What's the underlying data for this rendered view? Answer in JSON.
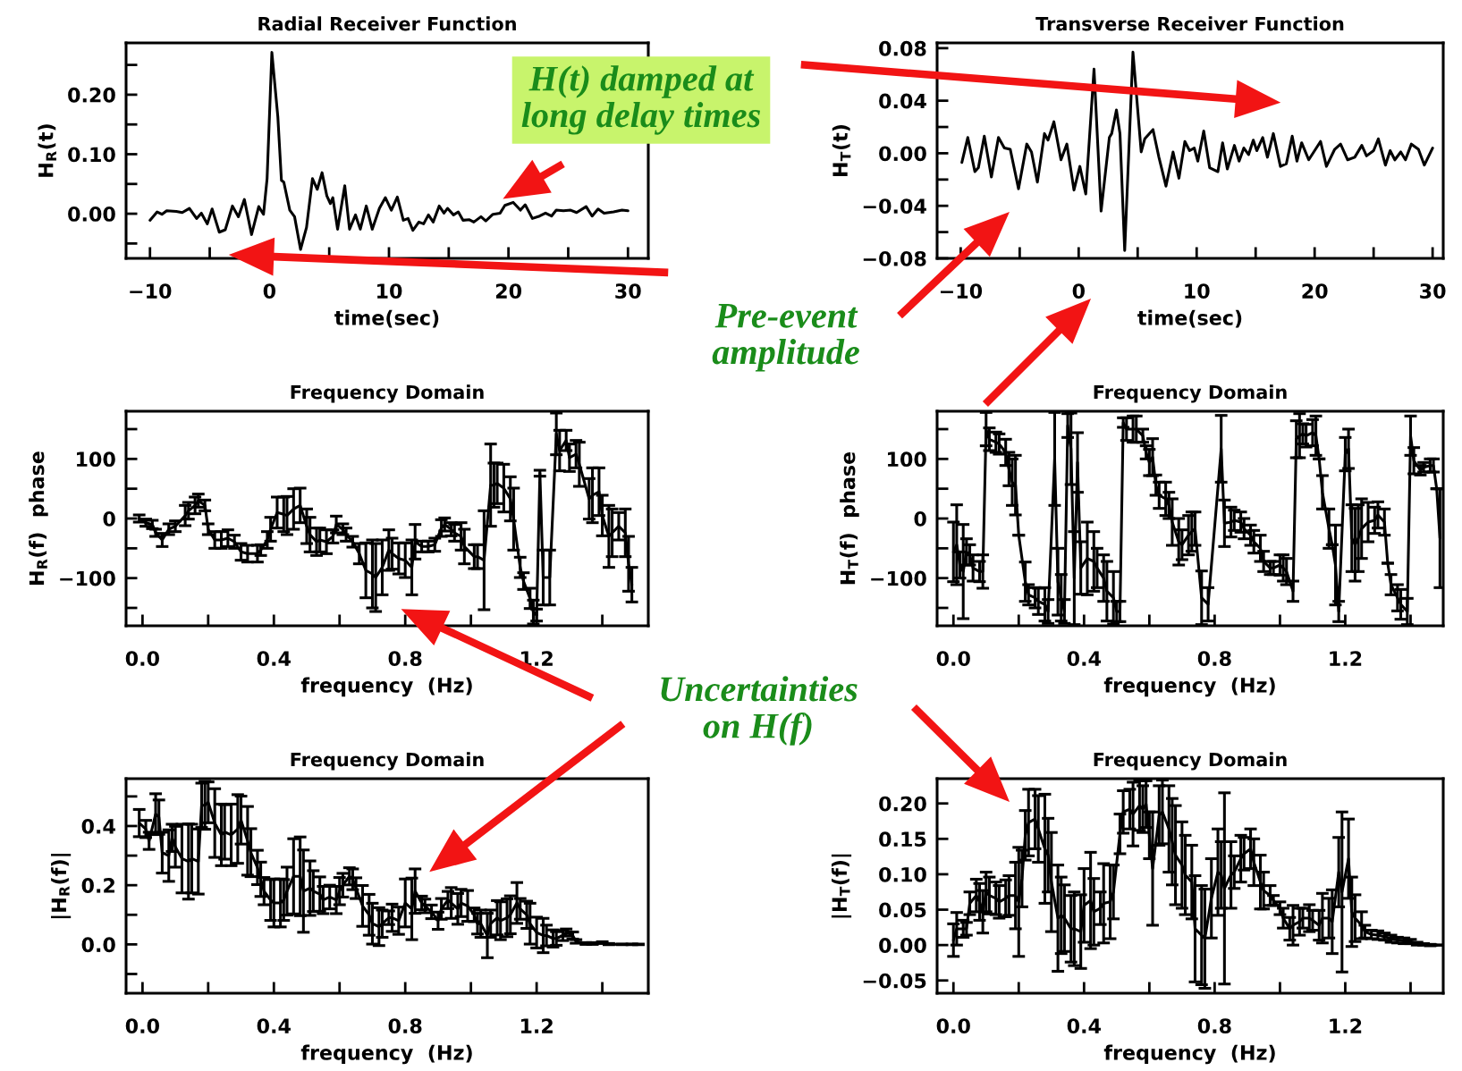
{
  "chart_data": [
    {
      "type": "line",
      "title": "Radial Receiver Function",
      "xlabel": "time(sec)",
      "ylabel": "H$_{R}$(t)",
      "xlim": [
        -12,
        31.7
      ],
      "ylim": [
        -0.075,
        0.287
      ],
      "xticks": [
        {
          "value": -10,
          "label": "−10"
        },
        {
          "value": -5,
          "label": null
        },
        0,
        {
          "value": 5,
          "label": null
        },
        10,
        {
          "value": 15,
          "label": null
        },
        20,
        {
          "value": 25,
          "label": null
        },
        30
      ],
      "yticks": [
        {
          "value": -0.05,
          "label": null
        },
        {
          "value": 0,
          "label": "0.00"
        },
        {
          "value": 0.05,
          "label": null
        },
        {
          "value": 0.1,
          "label": "0.10"
        },
        {
          "value": 0.15,
          "label": null
        },
        {
          "value": 0.2,
          "label": "0.20"
        },
        {
          "value": 0.25,
          "label": null
        }
      ],
      "annotations": [
        "H(t) damped at\nlong delay times",
        "Pre-event\namplitude",
        "Uncertainties\non H(f)"
      ],
      "series": [
        {
          "color": "#000000",
          "x": [
            -10.0,
            -9.4,
            -9.0,
            -8.6,
            -7.8,
            -7.3,
            -6.7,
            -6.1,
            -5.7,
            -5.2,
            -4.8,
            -4.2,
            -3.7,
            -3.1,
            -2.6,
            -2.1,
            -1.5,
            -0.9,
            -0.5,
            -0.2,
            0.2,
            0.7,
            1.0,
            1.2,
            1.7,
            2.1,
            2.6,
            3.1,
            3.6,
            4.0,
            4.4,
            4.8,
            5.1,
            5.3,
            5.7,
            6.3,
            6.7,
            7.2,
            7.6,
            8.1,
            8.6,
            9.2,
            9.7,
            10.2,
            10.7,
            11.2,
            11.6,
            12.0,
            12.5,
            12.9,
            13.3,
            13.7,
            14.2,
            14.6,
            14.9,
            15.4,
            15.8,
            16.2,
            16.7,
            17.1,
            17.7,
            18.1,
            18.7,
            19.3,
            19.7,
            20.4,
            21.0,
            21.4,
            22.0,
            22.6,
            23.1,
            23.6,
            24.0,
            24.6,
            25.2,
            25.7,
            26.5,
            27.0,
            27.5,
            28.0,
            28.8,
            29.5,
            30.0
          ],
          "values": [
            -0.011,
            0.003,
            -0.001,
            0.005,
            0.004,
            0.002,
            0.009,
            -0.008,
            0.001,
            -0.017,
            0.008,
            -0.031,
            -0.027,
            0.013,
            -0.005,
            0.024,
            -0.035,
            0.012,
            -0.001,
            0.059,
            0.271,
            0.163,
            0.056,
            0.053,
            0.006,
            -0.005,
            -0.06,
            -0.023,
            0.059,
            0.041,
            0.069,
            0.03,
            0.017,
            0.027,
            -0.026,
            0.047,
            -0.026,
            -0.002,
            -0.026,
            0.013,
            -0.026,
            0.009,
            0.027,
            0.006,
            0.028,
            -0.011,
            -0.008,
            -0.028,
            -0.014,
            -0.017,
            -0.002,
            -0.014,
            0.013,
            0.001,
            0.009,
            -0.002,
            0.003,
            -0.011,
            -0.01,
            -0.014,
            -0.005,
            -0.012,
            -0.001,
            0.001,
            0.014,
            0.019,
            0.006,
            0.015,
            -0.008,
            -0.004,
            0.001,
            -0.004,
            0.006,
            0.005,
            0.006,
            0.002,
            0.012,
            -0.004,
            0.008,
            0.001,
            0.003,
            0.006,
            0.005
          ]
        }
      ]
    },
    {
      "type": "line",
      "title": "Transverse Receiver Function",
      "xlabel": "time(sec)",
      "ylabel": "H$_{T}$(t)",
      "xlim": [
        -12,
        30.9
      ],
      "ylim": [
        -0.08,
        0.084
      ],
      "xticks": [
        {
          "value": -10,
          "label": "−10"
        },
        {
          "value": -5,
          "label": null
        },
        0,
        {
          "value": 5,
          "label": null
        },
        10,
        {
          "value": 15,
          "label": null
        },
        20,
        {
          "value": 25,
          "label": null
        },
        30
      ],
      "yticks": [
        {
          "value": -0.08,
          "label": "−0.08"
        },
        {
          "value": -0.06,
          "label": null
        },
        {
          "value": -0.04,
          "label": "−0.04"
        },
        {
          "value": -0.02,
          "label": null
        },
        {
          "value": 0,
          "label": "0.00"
        },
        {
          "value": 0.02,
          "label": null
        },
        {
          "value": 0.04,
          "label": "0.04"
        },
        {
          "value": 0.06,
          "label": null
        },
        {
          "value": 0.08,
          "label": "0.08"
        }
      ],
      "series": [
        {
          "color": "#000000",
          "x": [
            -9.9,
            -9.4,
            -8.8,
            -8.5,
            -8.0,
            -7.4,
            -6.8,
            -6.3,
            -5.8,
            -5.1,
            -4.4,
            -4.0,
            -3.5,
            -2.9,
            -2.6,
            -2.1,
            -1.5,
            -1.0,
            -0.4,
            0.1,
            0.6,
            1.3,
            1.9,
            2.6,
            2.8,
            3.2,
            3.5,
            3.9,
            4.6,
            5.3,
            5.6,
            6.3,
            6.8,
            7.4,
            8.0,
            8.5,
            9.0,
            9.4,
            9.8,
            10.1,
            10.6,
            11.1,
            11.8,
            12.2,
            12.6,
            13.2,
            13.6,
            14.0,
            14.4,
            14.8,
            15.1,
            15.6,
            16.0,
            16.5,
            17.1,
            17.6,
            18.1,
            18.5,
            18.9,
            19.5,
            20.5,
            21.0,
            21.7,
            22.2,
            22.8,
            23.4,
            24.0,
            24.4,
            25.0,
            25.4,
            26.0,
            26.4,
            26.8,
            27.3,
            27.7,
            28.2,
            28.8,
            29.3,
            30.0
          ],
          "values": [
            -0.007,
            0.012,
            -0.014,
            -0.011,
            0.013,
            -0.018,
            0.012,
            0.004,
            0.003,
            -0.027,
            0.007,
            0.001,
            -0.022,
            0.015,
            0.01,
            0.024,
            -0.005,
            0.007,
            -0.028,
            -0.01,
            -0.031,
            0.064,
            -0.044,
            0.012,
            0.015,
            0.033,
            0.015,
            -0.074,
            0.077,
            0.001,
            0.011,
            0.018,
            -0.003,
            -0.025,
            0.001,
            -0.019,
            0.009,
            0.002,
            0.004,
            -0.006,
            0.017,
            -0.011,
            -0.014,
            0.008,
            -0.012,
            0.006,
            -0.006,
            0.004,
            -0.001,
            0.01,
            0.002,
            0.012,
            -0.003,
            0.015,
            -0.01,
            -0.008,
            0.013,
            -0.006,
            0.008,
            -0.005,
            0.009,
            -0.01,
            0.003,
            0.007,
            -0.005,
            -0.003,
            0.006,
            -0.002,
            0.002,
            0.011,
            -0.009,
            0.002,
            -0.005,
            0.001,
            -0.005,
            0.007,
            0.003,
            -0.009,
            0.004
          ]
        }
      ]
    },
    {
      "type": "line",
      "title": "Frequency Domain",
      "xlabel": "frequency  (Hz)",
      "ylabel": "H$_{R}$(f)  phase",
      "xlim": [
        -0.05,
        1.54
      ],
      "ylim": [
        -180,
        180
      ],
      "xticks": [
        {
          "value": 0,
          "label": "0.0"
        },
        {
          "value": 0.2,
          "label": null
        },
        0.4,
        {
          "value": 0.6,
          "label": null
        },
        0.8,
        {
          "value": 1.0,
          "label": null
        },
        1.2,
        {
          "value": 1.4,
          "label": null
        }
      ],
      "yticks": [
        {
          "value": -150,
          "label": null
        },
        {
          "value": -100,
          "label": "−100"
        },
        {
          "value": -50,
          "label": null
        },
        0,
        {
          "value": 50,
          "label": null
        },
        100,
        {
          "value": 150,
          "label": null
        }
      ],
      "series": [
        {
          "color": "#000000",
          "x": [
            -0.01,
            0.01,
            0.03,
            0.04,
            0.06,
            0.08,
            0.1,
            0.13,
            0.14,
            0.16,
            0.17,
            0.19,
            0.2,
            0.22,
            0.24,
            0.26,
            0.28,
            0.3,
            0.32,
            0.35,
            0.36,
            0.38,
            0.39,
            0.41,
            0.43,
            0.44,
            0.46,
            0.48,
            0.5,
            0.51,
            0.53,
            0.54,
            0.56,
            0.58,
            0.59,
            0.61,
            0.62,
            0.64,
            0.66,
            0.68,
            0.7,
            0.71,
            0.73,
            0.75,
            0.76,
            0.78,
            0.8,
            0.82,
            0.83,
            0.85,
            0.87,
            0.89,
            0.91,
            0.92,
            0.94,
            0.95,
            0.97,
            0.98,
            1.01,
            1.02,
            1.04,
            1.06,
            1.07,
            1.08,
            1.1,
            1.12,
            1.13,
            1.15,
            1.16,
            1.18,
            1.19,
            1.2,
            1.21,
            1.22,
            1.24,
            1.26,
            1.27,
            1.29,
            1.3,
            1.32,
            1.33,
            1.36,
            1.37,
            1.39,
            1.4,
            1.42,
            1.43,
            1.45,
            1.47,
            1.48,
            1.49
          ],
          "values": [
            0,
            -7,
            -10,
            -24,
            -36,
            -18,
            -13,
            5,
            13,
            22,
            30,
            22,
            -18,
            -36,
            -36,
            -33,
            -39,
            -56,
            -59,
            -59,
            -53,
            -36,
            -18,
            10,
            7,
            5,
            16,
            22,
            -13,
            -27,
            -39,
            -36,
            -39,
            -30,
            -10,
            -18,
            -27,
            -39,
            -59,
            -87,
            -93,
            -99,
            -82,
            -53,
            -59,
            -67,
            -70,
            -82,
            -39,
            -47,
            -47,
            -44,
            -16,
            -10,
            -18,
            -24,
            -30,
            -47,
            -64,
            -64,
            -70,
            56,
            56,
            59,
            51,
            33,
            -1,
            -82,
            -105,
            -134,
            -157,
            -162,
            76,
            -99,
            -99,
            142,
            114,
            131,
            102,
            108,
            91,
            33,
            39,
            45,
            5,
            -30,
            -24,
            -13,
            -24,
            -76,
            -111
          ],
          "errors": [
            6,
            6,
            7,
            6,
            11,
            9,
            9,
            17,
            14,
            14,
            11,
            9,
            9,
            14,
            14,
            14,
            11,
            14,
            14,
            14,
            9,
            14,
            20,
            26,
            29,
            32,
            34,
            29,
            29,
            29,
            23,
            20,
            20,
            11,
            14,
            9,
            11,
            9,
            17,
            46,
            57,
            57,
            46,
            34,
            26,
            26,
            29,
            46,
            29,
            9,
            9,
            11,
            14,
            11,
            11,
            14,
            23,
            29,
            20,
            20,
            83,
            69,
            37,
            34,
            40,
            37,
            52,
            17,
            14,
            17,
            20,
            10,
            5,
            46,
            46,
            35,
            34,
            17,
            23,
            23,
            37,
            34,
            46,
            40,
            34,
            52,
            40,
            23,
            40,
            46,
            29
          ]
        }
      ]
    },
    {
      "type": "line",
      "title": "Frequency Domain",
      "xlabel": "frequency  (Hz)",
      "ylabel": "H$_{T}$(f)  phase",
      "xlim": [
        -0.05,
        1.5
      ],
      "ylim": [
        -180,
        180
      ],
      "xticks": [
        {
          "value": 0,
          "label": "0.0"
        },
        {
          "value": 0.2,
          "label": null
        },
        0.4,
        {
          "value": 0.6,
          "label": null
        },
        0.8,
        {
          "value": 1.0,
          "label": null
        },
        1.2,
        {
          "value": 1.4,
          "label": null
        }
      ],
      "yticks": [
        {
          "value": -150,
          "label": null
        },
        {
          "value": -100,
          "label": "−100"
        },
        {
          "value": -50,
          "label": null
        },
        0,
        {
          "value": 50,
          "label": null
        },
        100,
        {
          "value": 150,
          "label": null
        }
      ],
      "series": [
        {
          "color": "#000000",
          "x": [
            0.0,
            0.01,
            0.02,
            0.03,
            0.04,
            0.05,
            0.06,
            0.08,
            0.09,
            0.1,
            0.11,
            0.13,
            0.14,
            0.16,
            0.17,
            0.18,
            0.19,
            0.2,
            0.22,
            0.23,
            0.25,
            0.26,
            0.28,
            0.29,
            0.31,
            0.32,
            0.33,
            0.34,
            0.35,
            0.36,
            0.37,
            0.38,
            0.39,
            0.41,
            0.43,
            0.44,
            0.46,
            0.47,
            0.49,
            0.5,
            0.51,
            0.52,
            0.53,
            0.55,
            0.56,
            0.58,
            0.59,
            0.6,
            0.61,
            0.62,
            0.63,
            0.65,
            0.66,
            0.67,
            0.69,
            0.7,
            0.72,
            0.73,
            0.74,
            0.76,
            0.78,
            0.82,
            0.83,
            0.85,
            0.86,
            0.88,
            0.89,
            0.91,
            0.92,
            0.94,
            0.95,
            0.97,
            0.98,
            1.0,
            1.01,
            1.02,
            1.04,
            1.05,
            1.06,
            1.07,
            1.08,
            1.1,
            1.11,
            1.12,
            1.13,
            1.15,
            1.16,
            1.17,
            1.18,
            1.2,
            1.21,
            1.22,
            1.23,
            1.24,
            1.25,
            1.27,
            1.29,
            1.3,
            1.32,
            1.33,
            1.34,
            1.36,
            1.37,
            1.39,
            1.4,
            1.41,
            1.43,
            1.44,
            1.46,
            1.47,
            1.48,
            1.49
          ],
          "values": [
            -56,
            -44,
            -78,
            -89,
            -56,
            -61,
            -83,
            -89,
            -89,
            150,
            133,
            128,
            125,
            111,
            83,
            61,
            56,
            -28,
            -106,
            -128,
            -133,
            -139,
            -144,
            -156,
            100,
            -106,
            -133,
            -156,
            156,
            117,
            -100,
            94,
            -83,
            -67,
            -72,
            -83,
            -100,
            -122,
            -133,
            -156,
            -156,
            161,
            150,
            150,
            150,
            139,
            111,
            94,
            103,
            56,
            39,
            33,
            22,
            -6,
            -39,
            -44,
            -28,
            -22,
            -17,
            -133,
            -144,
            117,
            -8,
            -6,
            -3,
            -6,
            -17,
            -28,
            -39,
            -50,
            -72,
            -83,
            -83,
            -78,
            -83,
            -89,
            -122,
            133,
            139,
            142,
            139,
            144,
            139,
            100,
            44,
            -17,
            -44,
            -78,
            -156,
            108,
            117,
            -33,
            -44,
            -33,
            -17,
            -6,
            -3,
            6,
            -6,
            -75,
            -111,
            -133,
            -144,
            -156,
            139,
            97,
            81,
            86,
            89,
            89,
            50,
            -33
          ],
          "errors": [
            50,
            67,
            22,
            79,
            22,
            17,
            22,
            17,
            28,
            28,
            19,
            17,
            17,
            22,
            28,
            39,
            50,
            null,
            33,
            17,
            17,
            22,
            28,
            20,
            78,
            56,
            39,
            20,
            20,
            60,
            78,
            50,
            44,
            61,
            50,
            33,
            39,
            50,
            44,
            17,
            17,
            8,
            19,
            22,
            22,
            11,
            11,
            22,
            31,
            17,
            22,
            28,
            22,
            39,
            39,
            25,
            33,
            33,
            28,
            45,
            28,
            56,
            39,
            25,
            17,
            17,
            17,
            17,
            19,
            22,
            17,
            11,
            11,
            17,
            22,
            22,
            17,
            31,
            37,
            17,
            19,
            22,
            33,
            null,
            28,
            33,
            null,
            67,
            17,
            28,
            33,
            56,
            61,
            56,
            50,
            33,
            22,
            22,
            22,
            null,
            17,
            22,
            25,
            22,
            33,
            22,
            8,
            8,
            11,
            11,
            null,
            83
          ]
        }
      ]
    },
    {
      "type": "line",
      "title": "Frequency Domain",
      "xlabel": "frequency  (Hz)",
      "ylabel": "|H$_{R}$(f)|",
      "xlim": [
        -0.05,
        1.54
      ],
      "ylim": [
        -0.165,
        0.56
      ],
      "xticks": [
        {
          "value": 0,
          "label": "0.0"
        },
        {
          "value": 0.2,
          "label": null
        },
        0.4,
        {
          "value": 0.6,
          "label": null
        },
        0.8,
        {
          "value": 1.0,
          "label": null
        },
        1.2,
        {
          "value": 1.4,
          "label": null
        }
      ],
      "yticks": [
        {
          "value": -0.1,
          "label": null
        },
        {
          "value": 0,
          "label": "0.0"
        },
        {
          "value": 0.1,
          "label": null
        },
        0.2,
        {
          "value": 0.3,
          "label": null
        },
        0.4,
        {
          "value": 0.5,
          "label": null
        }
      ],
      "series": [
        {
          "color": "#000000",
          "x": [
            -0.01,
            0.01,
            0.02,
            0.04,
            0.05,
            0.06,
            0.08,
            0.09,
            0.1,
            0.12,
            0.14,
            0.15,
            0.17,
            0.18,
            0.19,
            0.2,
            0.22,
            0.24,
            0.25,
            0.27,
            0.29,
            0.3,
            0.32,
            0.33,
            0.35,
            0.36,
            0.37,
            0.39,
            0.4,
            0.42,
            0.43,
            0.44,
            0.46,
            0.48,
            0.49,
            0.51,
            0.52,
            0.54,
            0.55,
            0.57,
            0.59,
            0.6,
            0.61,
            0.63,
            0.64,
            0.65,
            0.67,
            0.69,
            0.7,
            0.72,
            0.73,
            0.75,
            0.76,
            0.78,
            0.8,
            0.82,
            0.83,
            0.85,
            0.86,
            0.88,
            0.9,
            0.91,
            0.93,
            0.94,
            0.96,
            0.97,
            0.99,
            1.01,
            1.02,
            1.03,
            1.05,
            1.06,
            1.08,
            1.09,
            1.11,
            1.12,
            1.14,
            1.15,
            1.17,
            1.18,
            1.2,
            1.22,
            1.23,
            1.25,
            1.26,
            1.28,
            1.29,
            1.31,
            1.32,
            1.35,
            1.37,
            1.4,
            1.42,
            1.46,
            1.49,
            1.51
          ],
          "values": [
            0.41,
            0.39,
            0.35,
            0.44,
            0.43,
            0.31,
            0.3,
            0.36,
            0.33,
            0.29,
            0.28,
            0.29,
            0.28,
            0.47,
            0.47,
            0.48,
            0.41,
            0.37,
            0.38,
            0.37,
            0.39,
            0.42,
            0.35,
            0.31,
            0.26,
            0.22,
            0.18,
            0.15,
            0.14,
            0.14,
            0.15,
            0.18,
            0.23,
            0.23,
            0.18,
            0.19,
            0.18,
            0.17,
            0.15,
            0.16,
            0.15,
            0.18,
            0.2,
            0.23,
            0.22,
            0.19,
            0.13,
            0.1,
            0.07,
            0.06,
            0.07,
            0.09,
            0.09,
            0.08,
            0.14,
            0.12,
            0.18,
            0.14,
            0.13,
            0.11,
            0.08,
            0.12,
            0.15,
            0.14,
            0.12,
            0.14,
            0.13,
            0.1,
            0.07,
            0.07,
            0.03,
            0.07,
            0.09,
            0.08,
            0.09,
            0.1,
            0.14,
            0.12,
            0.1,
            0.07,
            0.04,
            0.03,
            0.03,
            0.02,
            0.02,
            0.03,
            0.04,
            0.03,
            0.01,
            0.003,
            0.003,
            0.006,
            0.001,
            0,
            0,
            0
          ],
          "errors": [
            0.046,
            0.029,
            0.029,
            0.069,
            0.058,
            0.069,
            0.087,
            0.046,
            0.069,
            0.116,
            0.127,
            0.116,
            0.11,
            0.075,
            0.081,
            0.069,
            0.116,
            0.104,
            0.092,
            0.104,
            0.116,
            0.081,
            0.116,
            0.081,
            0.058,
            0.058,
            0.046,
            0.069,
            0.081,
            0.081,
            0.069,
            0.081,
            0.127,
            0.133,
            0.139,
            0.092,
            0.069,
            0.058,
            0.046,
            0.04,
            0.046,
            0.046,
            0.04,
            0.029,
            0.035,
            0.035,
            0.069,
            0.069,
            0.069,
            0.064,
            0.046,
            0.023,
            0.046,
            0.046,
            0.081,
            0.104,
            0.075,
            0.023,
            0.023,
            0.023,
            0.029,
            0.035,
            0.029,
            0.052,
            0.052,
            0.046,
            0.052,
            0.023,
            0.035,
            0.046,
            0.075,
            0.046,
            0.058,
            0.064,
            0.064,
            0.064,
            0.069,
            0.035,
            0.046,
            0.069,
            0.052,
            0.058,
            0.035,
            0.029,
            0.023,
            0.017,
            0.012,
            0.012,
            0.006,
            0.003,
            0.003,
            0.003,
            0.002,
            0.001,
            0.001,
            0.001
          ]
        }
      ]
    },
    {
      "type": "line",
      "title": "Frequency Domain",
      "xlabel": "frequency  (Hz)",
      "ylabel": "|H$_{T}$(f)|",
      "xlim": [
        -0.05,
        1.5
      ],
      "ylim": [
        -0.068,
        0.235
      ],
      "xticks": [
        {
          "value": 0,
          "label": "0.0"
        },
        {
          "value": 0.2,
          "label": null
        },
        0.4,
        {
          "value": 0.6,
          "label": null
        },
        0.8,
        {
          "value": 1.0,
          "label": null
        },
        1.2,
        {
          "value": 1.4,
          "label": null
        }
      ],
      "yticks": [
        {
          "value": -0.05,
          "label": "−0.05"
        },
        {
          "value": 0,
          "label": "0.00"
        },
        0.05,
        {
          "value": 0.1,
          "label": "0.10"
        },
        0.15,
        {
          "value": 0.2,
          "label": "0.20"
        }
      ],
      "series": [
        {
          "color": "#000000",
          "x": [
            0.0,
            0.01,
            0.03,
            0.04,
            0.05,
            0.07,
            0.08,
            0.09,
            0.1,
            0.11,
            0.13,
            0.14,
            0.16,
            0.17,
            0.19,
            0.2,
            0.21,
            0.22,
            0.23,
            0.25,
            0.26,
            0.28,
            0.29,
            0.3,
            0.32,
            0.33,
            0.34,
            0.36,
            0.37,
            0.39,
            0.4,
            0.42,
            0.43,
            0.45,
            0.46,
            0.48,
            0.49,
            0.51,
            0.52,
            0.54,
            0.55,
            0.57,
            0.58,
            0.59,
            0.6,
            0.61,
            0.63,
            0.64,
            0.66,
            0.67,
            0.68,
            0.7,
            0.71,
            0.73,
            0.74,
            0.76,
            0.77,
            0.79,
            0.81,
            0.82,
            0.83,
            0.85,
            0.86,
            0.88,
            0.89,
            0.91,
            0.92,
            0.94,
            0.95,
            0.97,
            0.98,
            1.0,
            1.01,
            1.03,
            1.04,
            1.06,
            1.07,
            1.09,
            1.1,
            1.12,
            1.13,
            1.15,
            1.16,
            1.18,
            1.19,
            1.21,
            1.22,
            1.23,
            1.25,
            1.26,
            1.28,
            1.3,
            1.32,
            1.34,
            1.36,
            1.38,
            1.4,
            1.42,
            1.44,
            1.46,
            1.48
          ],
          "values": [
            0.007,
            0.023,
            0.023,
            0.023,
            0.059,
            0.07,
            0.061,
            0.047,
            0.075,
            0.07,
            0.066,
            0.061,
            0.066,
            0.07,
            0.07,
            0.061,
            0.094,
            0.155,
            0.173,
            0.178,
            0.164,
            0.136,
            0.127,
            0.089,
            0.038,
            0.042,
            0.038,
            0.023,
            0.023,
            0.019,
            0.056,
            0.063,
            0.047,
            0.052,
            0.059,
            0.061,
            0.075,
            0.157,
            0.188,
            0.192,
            0.185,
            0.197,
            0.192,
            0.199,
            0.155,
            0.108,
            0.183,
            0.188,
            0.164,
            0.146,
            0.127,
            0.113,
            0.099,
            0.089,
            0.023,
            0.014,
            0.009,
            0.066,
            0.103,
            0.099,
            0.08,
            0.099,
            0.103,
            0.122,
            0.129,
            0.136,
            0.117,
            0.089,
            0.077,
            0.07,
            0.063,
            0.052,
            0.038,
            0.023,
            0.028,
            0.033,
            0.038,
            0.038,
            0.035,
            0.028,
            0.038,
            0.038,
            0.033,
            0.103,
            0.075,
            0.122,
            0.047,
            0.038,
            0.028,
            0.019,
            0.015,
            0.014,
            0.012,
            0.009,
            0.007,
            0.006,
            0.005,
            0.002,
            0.001,
            0.0,
            0.0
          ],
          "errors": [
            0.023,
            0.023,
            0.012,
            0.009,
            0.016,
            0.023,
            0.026,
            0.03,
            0.028,
            0.026,
            0.023,
            0.023,
            0.026,
            0.028,
            0.047,
            0.077,
            0.04,
            0.035,
            0.047,
            0.042,
            0.047,
            0.077,
            0.052,
            0.07,
            0.075,
            0.054,
            0.047,
            0.047,
            0.052,
            0.052,
            0.052,
            0.068,
            0.047,
            0.023,
            0.056,
            0.052,
            0.038,
            0.028,
            0.03,
            0.028,
            0.045,
            0.035,
            0.033,
            0.033,
            0.033,
            0.08,
            0.042,
            0.045,
            0.061,
            0.061,
            0.07,
            0.061,
            0.056,
            0.052,
            0.075,
            0.07,
            0.07,
            0.056,
            0.061,
            0.047,
            0.135,
            0.047,
            0.023,
            0.033,
            0.023,
            0.028,
            0.033,
            0.038,
            0.026,
            0.014,
            0.007,
            0.009,
            0.014,
            0.016,
            0.028,
            0.019,
            0.014,
            0.019,
            0.014,
            0.021,
            0.035,
            0.028,
            0.045,
            0.049,
            0.113,
            0.056,
            0.049,
            0.033,
            0.019,
            0.009,
            0.006,
            0.006,
            0.005,
            0.005,
            0.004,
            0.004,
            0.003,
            0.002,
            0.001,
            0.001,
            0.0
          ]
        }
      ]
    }
  ]
}
